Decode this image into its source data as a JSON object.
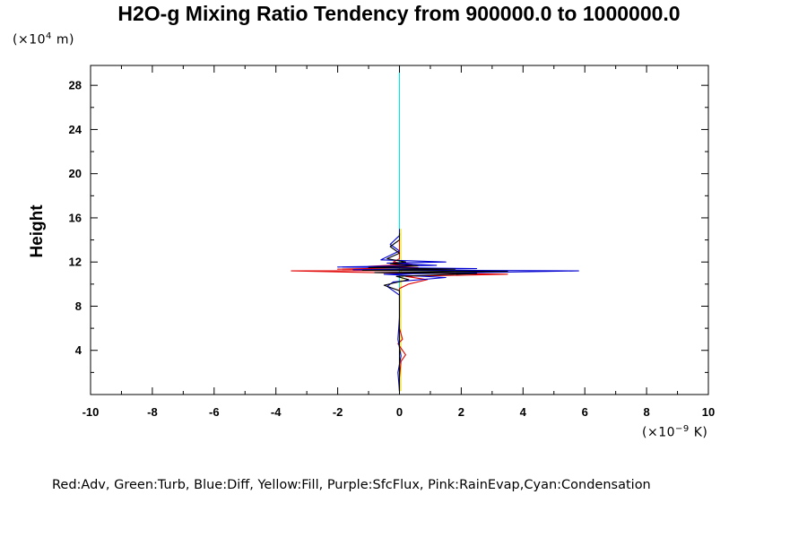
{
  "chart_data": {
    "type": "line",
    "title": "H2O-g Mixing Ratio Tendency from 900000.0 to 1000000.0",
    "ylabel": "Height",
    "y_unit_prefix": "(×10",
    "y_unit_exp": "4",
    "y_unit_suffix": " m)",
    "x_unit_prefix": "(×10",
    "x_unit_exp": "−9",
    "x_unit_suffix": " K)",
    "xlim": [
      -10,
      10
    ],
    "ylim": [
      0,
      29.8
    ],
    "x_ticks": [
      "-10",
      "-8",
      "-6",
      "-4",
      "-2",
      "0",
      "2",
      "4",
      "6",
      "8",
      "10"
    ],
    "y_ticks": [
      "4",
      "8",
      "12",
      "16",
      "20",
      "24",
      "28"
    ],
    "legend_text": "Red:Adv, Green:Turb, Blue:Diff, Yellow:Fill, Purple:SfcFlux, Pink:RainEvap,Cyan:Condensation",
    "series": [
      {
        "color": "#00e5e5",
        "points": [
          [
            0,
            0.2
          ],
          [
            0,
            4
          ],
          [
            0,
            8
          ],
          [
            0,
            12
          ],
          [
            0,
            16
          ],
          [
            0,
            20
          ],
          [
            0,
            24
          ],
          [
            0,
            29.8
          ]
        ]
      },
      {
        "color": "#ffee00",
        "points": [
          [
            0.05,
            0.3
          ],
          [
            0.05,
            6
          ],
          [
            0.05,
            10.2
          ],
          [
            0.1,
            10.6
          ],
          [
            0.05,
            11.0
          ],
          [
            0.1,
            11.6
          ],
          [
            0.05,
            12.4
          ],
          [
            0.05,
            15
          ]
        ]
      },
      {
        "color": "#e00000",
        "points": [
          [
            0,
            0.3
          ],
          [
            0,
            1.5
          ],
          [
            0.05,
            3.0
          ],
          [
            0.2,
            3.6
          ],
          [
            0.05,
            4.2
          ],
          [
            -0.05,
            4.6
          ],
          [
            0.1,
            5.0
          ],
          [
            0,
            6
          ],
          [
            0,
            9.6
          ],
          [
            0.3,
            10.0
          ],
          [
            0.9,
            10.4
          ],
          [
            0.2,
            10.7
          ],
          [
            3.5,
            10.9
          ],
          [
            -0.2,
            11.0
          ],
          [
            -3.5,
            11.2
          ],
          [
            1.5,
            11.25
          ],
          [
            -2.0,
            11.35
          ],
          [
            0.6,
            11.5
          ],
          [
            -1.0,
            11.6
          ],
          [
            0.4,
            11.8
          ],
          [
            -0.2,
            12.0
          ],
          [
            0,
            12.3
          ],
          [
            0,
            14
          ]
        ]
      },
      {
        "color": "#0000d0",
        "points": [
          [
            0,
            0.3
          ],
          [
            -0.05,
            2
          ],
          [
            0.05,
            3.5
          ],
          [
            -0.05,
            5
          ],
          [
            0,
            7
          ],
          [
            0,
            9
          ],
          [
            -0.4,
            9.8
          ],
          [
            -0.2,
            10.2
          ],
          [
            1.5,
            10.6
          ],
          [
            -0.5,
            10.9
          ],
          [
            5.8,
            11.2
          ],
          [
            -1.5,
            11.3
          ],
          [
            2.5,
            11.4
          ],
          [
            -2.0,
            11.55
          ],
          [
            1.2,
            11.7
          ],
          [
            -0.4,
            11.9
          ],
          [
            1.5,
            12.0
          ],
          [
            -0.6,
            12.2
          ],
          [
            -0.3,
            12.6
          ],
          [
            0,
            13.0
          ],
          [
            -0.3,
            13.6
          ],
          [
            0,
            14.4
          ],
          [
            0,
            15
          ]
        ]
      },
      {
        "color": "#000000",
        "points": [
          [
            0,
            0.3
          ],
          [
            0,
            2
          ],
          [
            0,
            4
          ],
          [
            0,
            6
          ],
          [
            0,
            8
          ],
          [
            0,
            9.4
          ],
          [
            -0.5,
            9.9
          ],
          [
            0.3,
            10.4
          ],
          [
            -0.1,
            10.7
          ],
          [
            2.5,
            10.95
          ],
          [
            -0.8,
            11.05
          ],
          [
            3.5,
            11.15
          ],
          [
            -1.2,
            11.25
          ],
          [
            1.8,
            11.35
          ],
          [
            -1.0,
            11.5
          ],
          [
            0.6,
            11.65
          ],
          [
            -0.3,
            11.85
          ],
          [
            0.2,
            12.0
          ],
          [
            -0.4,
            12.3
          ],
          [
            0,
            12.8
          ],
          [
            -0.3,
            13.4
          ],
          [
            0,
            14.0
          ],
          [
            0,
            14.6
          ]
        ]
      }
    ]
  }
}
